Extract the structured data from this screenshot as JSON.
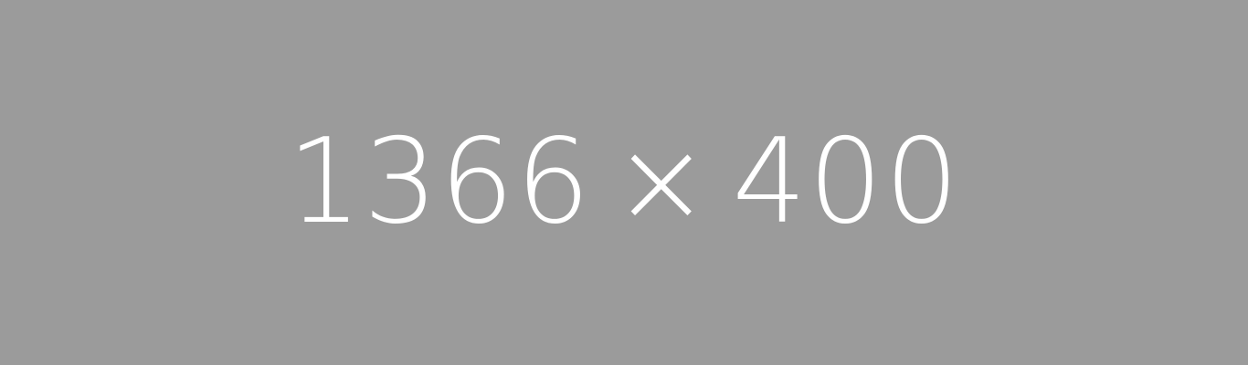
{
  "placeholder": {
    "width_text": "1366",
    "separator": "×",
    "height_text": "400",
    "background_color": "#9b9b9b",
    "text_color": "#ffffff"
  }
}
